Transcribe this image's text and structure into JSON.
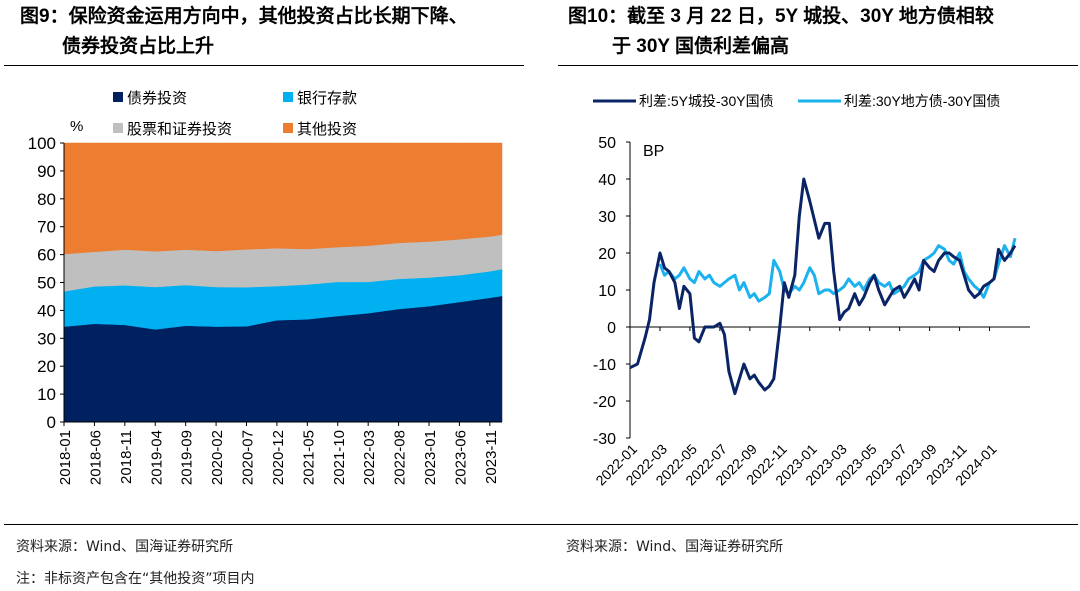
{
  "titles": {
    "left_line1": "图9：保险资金运用方向中，其他投资占比长期下降、",
    "left_line2": "债券投资占比上升",
    "right_line1": "图10：截至 3 月 22 日，5Y 城投、30Y 地方债相较",
    "right_line2": "于 30Y 国债利差偏高"
  },
  "footer": {
    "source_left": "资料来源：Wind、国海证券研究所",
    "source_right": "资料来源：Wind、国海证券研究所",
    "note": "注：非标资产包含在“其他投资”项目内"
  },
  "colors": {
    "bond": "#002060",
    "bank": "#00B0F0",
    "stock": "#BFBFBF",
    "other": "#ED7D31",
    "cityinv": "#0A2466",
    "local": "#1CB2EE"
  },
  "chart_data": [
    {
      "type": "area",
      "stacked": true,
      "title": "保险资金运用方向中，其他投资占比长期下降、债券投资占比上升",
      "ylabel": "%",
      "ylim": [
        0,
        100
      ],
      "yticks": [
        "0",
        "10",
        "20",
        "30",
        "40",
        "50",
        "60",
        "70",
        "80",
        "90",
        "100"
      ],
      "xticks": [
        "2018-01",
        "2018-06",
        "2018-11",
        "2019-04",
        "2019-09",
        "2020-02",
        "2020-07",
        "2020-12",
        "2021-05",
        "2021-10",
        "2022-03",
        "2022-08",
        "2023-01",
        "2023-06",
        "2023-11"
      ],
      "legend_position": "top",
      "x": [
        "2018-01",
        "2018-06",
        "2018-11",
        "2019-04",
        "2019-09",
        "2020-02",
        "2020-07",
        "2020-12",
        "2021-05",
        "2021-10",
        "2022-03",
        "2022-08",
        "2023-01",
        "2023-06",
        "2023-11",
        "2024-01"
      ],
      "series": [
        {
          "name": "债券投资",
          "values": [
            34.2,
            35.2,
            34.8,
            33.2,
            34.5,
            34.2,
            34.3,
            36.5,
            36.8,
            38.0,
            39.0,
            40.5,
            41.5,
            43.0,
            44.5,
            45.2
          ]
        },
        {
          "name": "银行存款",
          "values": [
            12.6,
            13.4,
            14.2,
            15.2,
            14.6,
            14.2,
            14.0,
            12.2,
            12.5,
            12.2,
            11.2,
            10.8,
            10.3,
            9.6,
            9.5,
            9.6
          ]
        },
        {
          "name": "股票和证券投资",
          "values": [
            13.4,
            12.4,
            12.8,
            12.8,
            12.7,
            12.9,
            13.6,
            13.6,
            12.7,
            12.5,
            13.0,
            12.9,
            12.9,
            12.9,
            12.5,
            12.4
          ]
        },
        {
          "name": "其他投资",
          "values": [
            39.8,
            39.0,
            38.2,
            38.8,
            38.2,
            38.7,
            38.1,
            37.7,
            38.0,
            37.3,
            36.8,
            35.8,
            35.3,
            34.5,
            33.5,
            32.8
          ]
        }
      ]
    },
    {
      "type": "line",
      "title": "截至3月22日，5Y城投、30Y地方债相较于30Y国债利差偏高",
      "ylabel": "BP",
      "ylim": [
        -30,
        50
      ],
      "yticks": [
        "-30",
        "-20",
        "-10",
        "0",
        "10",
        "20",
        "30",
        "40",
        "50"
      ],
      "xticks": [
        "2022-01",
        "2022-03",
        "2022-05",
        "2022-07",
        "2022-09",
        "2022-11",
        "2023-01",
        "2023-03",
        "2023-05",
        "2023-07",
        "2023-09",
        "2023-11",
        "2024-01"
      ],
      "xrange": [
        "2022-01",
        "2024-03"
      ],
      "legend_position": "top",
      "x_months": [
        0,
        0.5,
        1,
        1.3,
        1.6,
        2,
        2.3,
        2.6,
        3,
        3.3,
        3.6,
        4,
        4.3,
        4.6,
        5,
        5.3,
        5.6,
        6,
        6.3,
        6.6,
        7,
        7.3,
        7.6,
        8,
        8.3,
        8.6,
        9,
        9.3,
        9.6,
        10,
        10.3,
        10.6,
        11,
        11.3,
        11.6,
        12,
        12.3,
        12.6,
        13,
        13.3,
        13.6,
        14,
        14.3,
        14.6,
        15,
        15.3,
        15.6,
        16,
        16.3,
        16.6,
        17,
        17.3,
        17.6,
        18,
        18.3,
        18.6,
        19,
        19.3,
        19.6,
        20,
        20.3,
        20.6,
        21,
        21.3,
        21.6,
        22,
        22.3,
        22.6,
        23,
        23.3,
        23.6,
        24,
        24.3,
        24.6,
        25,
        25.4,
        25.7
      ],
      "series": [
        {
          "name": "利差:5Y城投-30Y国债",
          "values": [
            -11,
            -10,
            -3,
            2,
            12,
            20,
            16,
            15,
            12,
            5,
            11,
            9,
            -3,
            -4,
            0,
            0,
            0,
            1,
            -2,
            -12,
            -18,
            -14,
            -10,
            -14,
            -13,
            -15,
            -17,
            -16,
            -14,
            0,
            12,
            8,
            14,
            30,
            40,
            34,
            29,
            24,
            28,
            28,
            15,
            2,
            4,
            5,
            9,
            6,
            8,
            12,
            14,
            10,
            6,
            8,
            10,
            11,
            8,
            10,
            13,
            10,
            18,
            16,
            15,
            18,
            20,
            20,
            19,
            18,
            14,
            10,
            8,
            9,
            11,
            12,
            13,
            21,
            18,
            20,
            22
          ]
        },
        {
          "name": "利差:30Y地方债-30Y国债",
          "values": [
            null,
            null,
            null,
            null,
            null,
            17,
            14,
            15,
            13,
            14,
            16,
            13,
            12,
            15,
            13,
            14,
            12,
            11,
            12,
            13,
            14,
            10,
            12,
            8,
            9,
            7,
            8,
            9,
            18,
            15,
            10,
            9,
            11,
            10,
            12,
            16,
            14,
            9,
            10,
            10,
            9,
            10,
            11,
            13,
            11,
            12,
            10,
            13,
            14,
            12,
            11,
            12,
            9,
            10,
            11,
            13,
            14,
            15,
            18,
            19,
            20,
            22,
            21,
            18,
            17,
            20,
            15,
            13,
            11,
            10,
            8,
            12,
            13,
            17,
            22,
            19,
            24
          ]
        }
      ]
    }
  ]
}
